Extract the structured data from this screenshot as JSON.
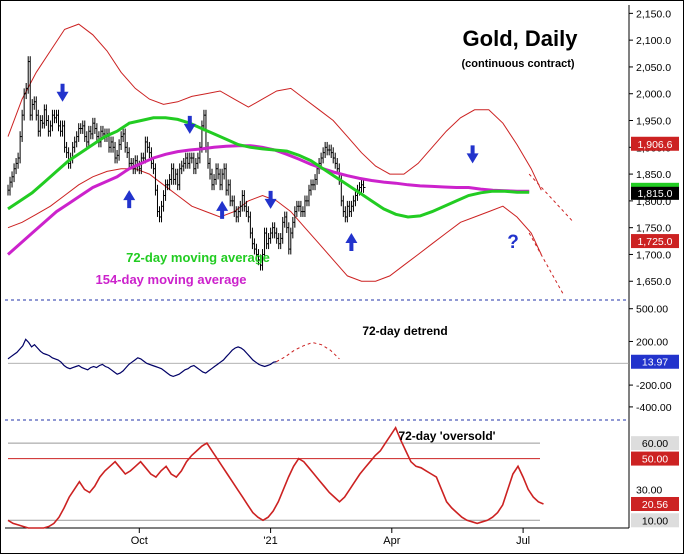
{
  "chart_data": [
    {
      "panel": "price",
      "type": "line",
      "title": "Gold, Daily",
      "subtitle": "(continuous contract)",
      "y_axis_labels": [
        "2,150.0",
        "2,100.0",
        "2,050.0",
        "2,000.0",
        "1,950.0",
        "1,900.0",
        "1,850.0",
        "1,800.0",
        "1,750.0",
        "1,700.0",
        "1,650.0"
      ],
      "y_ticks": [
        2150,
        2100,
        2050,
        2000,
        1950,
        1900,
        1850,
        1800,
        1750,
        1700,
        1650
      ],
      "ylim": [
        1615,
        2160
      ],
      "x_tick_labels": [
        "Oct",
        "'21",
        "Apr",
        "Jul"
      ],
      "x_tick_index": [
        65,
        130,
        190,
        255
      ],
      "price_close": [
        1820,
        1835,
        1845,
        1860,
        1870,
        1880,
        1920,
        1960,
        2000,
        2010,
        2060,
        1960,
        1980,
        1985,
        1960,
        1930,
        1950,
        1945,
        1970,
        1950,
        1930,
        1940,
        1960,
        1955,
        1960,
        1940,
        1930,
        1940,
        1900,
        1890,
        1870,
        1880,
        1900,
        1910,
        1920,
        1935,
        1935,
        1940,
        1920,
        1910,
        1930,
        1925,
        1945,
        1935,
        1920,
        1910,
        1930,
        1925,
        1920,
        1925,
        1900,
        1910,
        1900,
        1880,
        1885,
        1905,
        1920,
        1925,
        1900,
        1890,
        1870,
        1870,
        1860,
        1875,
        1865,
        1860,
        1880,
        1880,
        1910,
        1900,
        1890,
        1870,
        1860,
        1820,
        1780,
        1770,
        1790,
        1810,
        1830,
        1830,
        1840,
        1860,
        1840,
        1850,
        1830,
        1860,
        1865,
        1870,
        1880,
        1870,
        1880,
        1880,
        1860,
        1870,
        1880,
        1900,
        1940,
        1960,
        1900,
        1870,
        1850,
        1830,
        1840,
        1860,
        1850,
        1830,
        1850,
        1860,
        1820,
        1830,
        1800,
        1800,
        1780,
        1770,
        1780,
        1790,
        1810,
        1790,
        1780,
        1770,
        1740,
        1720,
        1710,
        1700,
        1690,
        1680,
        1700,
        1740,
        1720,
        1730,
        1740,
        1750,
        1740,
        1730,
        1720,
        1730,
        1760,
        1770,
        1750,
        1710,
        1740,
        1760,
        1780,
        1790,
        1790,
        1780,
        1780,
        1800,
        1800,
        1820,
        1830,
        1830,
        1840,
        1860,
        1870,
        1880,
        1890,
        1900,
        1895,
        1895,
        1890,
        1880,
        1870,
        1860,
        1840,
        1800,
        1780,
        1770,
        1790,
        1780,
        1790,
        1800,
        1810,
        1820,
        1825,
        1830,
        1825
      ],
      "price_close_index_start": 0,
      "series": [
        {
          "name": "72-day moving average",
          "color": "#22cc22"
        },
        {
          "name": "154-day moving average",
          "color": "#cc22cc"
        },
        {
          "name": "Price bands",
          "color": "#cc2222"
        }
      ],
      "ma72": [
        1785,
        1800,
        1815,
        1835,
        1855,
        1875,
        1890,
        1905,
        1920,
        1930,
        1945,
        1950,
        1955,
        1955,
        1952,
        1945,
        1935,
        1925,
        1915,
        1905,
        1900,
        1897,
        1895,
        1893,
        1885,
        1875,
        1860,
        1845,
        1830,
        1815,
        1800,
        1785,
        1775,
        1770,
        1772,
        1780,
        1790,
        1800,
        1810,
        1815,
        1818,
        1818,
        1816,
        1816
      ],
      "ma154": [
        1700,
        1720,
        1740,
        1760,
        1780,
        1795,
        1810,
        1825,
        1835,
        1845,
        1860,
        1870,
        1880,
        1887,
        1892,
        1895,
        1897,
        1900,
        1902,
        1903,
        1903,
        1900,
        1895,
        1887,
        1878,
        1868,
        1860,
        1853,
        1847,
        1842,
        1838,
        1835,
        1833,
        1830,
        1828,
        1827,
        1826,
        1825,
        1825,
        1822,
        1820,
        1819,
        1818,
        1818
      ],
      "ma_x": [
        0,
        6,
        12,
        18,
        24,
        30,
        36,
        42,
        48,
        54,
        60,
        66,
        72,
        78,
        84,
        90,
        96,
        102,
        108,
        114,
        120,
        126,
        132,
        138,
        144,
        150,
        156,
        162,
        168,
        174,
        180,
        186,
        192,
        198,
        204,
        210,
        216,
        222,
        228,
        234,
        240,
        246,
        252,
        258
      ],
      "band_upper": [
        1920,
        1990,
        2040,
        2080,
        2120,
        2130,
        2110,
        2080,
        2040,
        2010,
        1990,
        1980,
        1985,
        1995,
        2000,
        2005,
        1990,
        1975,
        1990,
        2005,
        2010,
        1990,
        1970,
        1950,
        1920,
        1890,
        1865,
        1850,
        1850,
        1870,
        1900,
        1930,
        1955,
        1970,
        1970,
        1945,
        1905,
        1860,
        1820
      ],
      "band_lower": [
        1750,
        1760,
        1775,
        1790,
        1810,
        1830,
        1845,
        1855,
        1860,
        1860,
        1850,
        1830,
        1810,
        1790,
        1780,
        1770,
        1780,
        1800,
        1810,
        1800,
        1780,
        1750,
        1720,
        1690,
        1660,
        1650,
        1650,
        1660,
        1680,
        1700,
        1720,
        1740,
        1760,
        1770,
        1780,
        1790,
        1770,
        1740,
        1700
      ],
      "band_x": [
        0,
        7,
        14,
        21,
        28,
        35,
        42,
        49,
        56,
        63,
        70,
        77,
        84,
        91,
        98,
        105,
        112,
        119,
        126,
        133,
        140,
        147,
        154,
        161,
        168,
        175,
        182,
        189,
        196,
        203,
        210,
        217,
        224,
        231,
        238,
        245,
        252,
        259,
        264
      ],
      "projection_upper": [
        {
          "x": 258,
          "y": 1850
        },
        {
          "x": 280,
          "y": 1760
        }
      ],
      "projection_lower": [
        {
          "x": 258,
          "y": 1740
        },
        {
          "x": 275,
          "y": 1625
        }
      ],
      "price_labels": [
        {
          "text": "1,906.6",
          "value": 1906.6,
          "bg": "#cc2222",
          "fg": "#ffffff"
        },
        {
          "text": "1,815.0",
          "value": 1815.0,
          "bg": "#000000",
          "fg": "#ffffff"
        },
        {
          "text": "1,725.0",
          "value": 1725.0,
          "bg": "#cc2222",
          "fg": "#ffffff"
        }
      ],
      "annotations": [
        {
          "text": "72-day moving average",
          "color": "#22cc22"
        },
        {
          "text": "154-day moving average",
          "color": "#cc22cc"
        },
        {
          "text": "?",
          "color": "#2233cc"
        }
      ],
      "down_arrows_at": [
        27,
        90,
        130,
        230
      ],
      "up_arrows_at": [
        60,
        106,
        170
      ]
    },
    {
      "panel": "detrend",
      "type": "line",
      "title": "72-day detrend",
      "y_axis_labels": [
        "500.00",
        "200.00",
        "-200.00",
        "-400.00"
      ],
      "y_ticks": [
        500,
        200,
        -200,
        -400
      ],
      "ylim": [
        -520,
        580
      ],
      "current_label": {
        "text": "13.97",
        "value": 13.97,
        "bg": "#2233cc",
        "fg": "#ffffff"
      },
      "values": [
        40,
        60,
        80,
        100,
        130,
        160,
        220,
        190,
        150,
        170,
        140,
        110,
        90,
        80,
        70,
        50,
        40,
        30,
        10,
        -20,
        -40,
        -50,
        -40,
        -30,
        -20,
        -40,
        -50,
        -60,
        -40,
        -30,
        -40,
        -20,
        -10,
        -30,
        -40,
        -60,
        -80,
        -100,
        -90,
        -70,
        -40,
        -10,
        10,
        30,
        50,
        40,
        20,
        0,
        -10,
        -20,
        -30,
        -40,
        -50,
        -70,
        -90,
        -110,
        -120,
        -110,
        -100,
        -80,
        -60,
        -50,
        -30,
        -20,
        -40,
        -60,
        -80,
        -90,
        -70,
        -50,
        -30,
        -10,
        10,
        30,
        60,
        90,
        120,
        140,
        150,
        140,
        120,
        90,
        60,
        30,
        10,
        -10,
        -20,
        -30,
        -20,
        -10,
        10,
        13.97
      ],
      "x_step": 2.95,
      "projection": [
        13.97,
        60,
        120,
        160,
        190,
        170,
        120,
        40
      ]
    },
    {
      "panel": "oversold",
      "type": "line",
      "title": "72-day 'oversold'",
      "y_axis_labels": [
        "60.00",
        "50.00",
        "30.00",
        "20.56",
        "10.00"
      ],
      "y_ticks": [
        60,
        50,
        30,
        10
      ],
      "ylim": [
        5,
        75
      ],
      "reference_lines": [
        {
          "value": 60,
          "color": "#999999"
        },
        {
          "value": 50,
          "color": "#cc2222"
        },
        {
          "value": 10,
          "color": "#999999"
        }
      ],
      "current_value": 20.56,
      "values": [
        10,
        8,
        7,
        6,
        5,
        5,
        5,
        5,
        6,
        8,
        12,
        18,
        25,
        30,
        35,
        30,
        28,
        32,
        38,
        42,
        45,
        48,
        44,
        40,
        42,
        45,
        48,
        44,
        40,
        38,
        42,
        45,
        40,
        38,
        42,
        48,
        52,
        55,
        58,
        60,
        55,
        50,
        45,
        40,
        35,
        30,
        25,
        20,
        15,
        12,
        10,
        12,
        16,
        22,
        30,
        38,
        45,
        50,
        48,
        44,
        40,
        36,
        32,
        28,
        25,
        22,
        25,
        30,
        35,
        40,
        44,
        48,
        52,
        55,
        60,
        65,
        70,
        62,
        55,
        48,
        45,
        44,
        42,
        40,
        38,
        30,
        22,
        18,
        15,
        12,
        10,
        9,
        8,
        9,
        10,
        12,
        15,
        20,
        30,
        40,
        45,
        38,
        30,
        25,
        22,
        20.56
      ],
      "x_step": 5.1
    }
  ]
}
